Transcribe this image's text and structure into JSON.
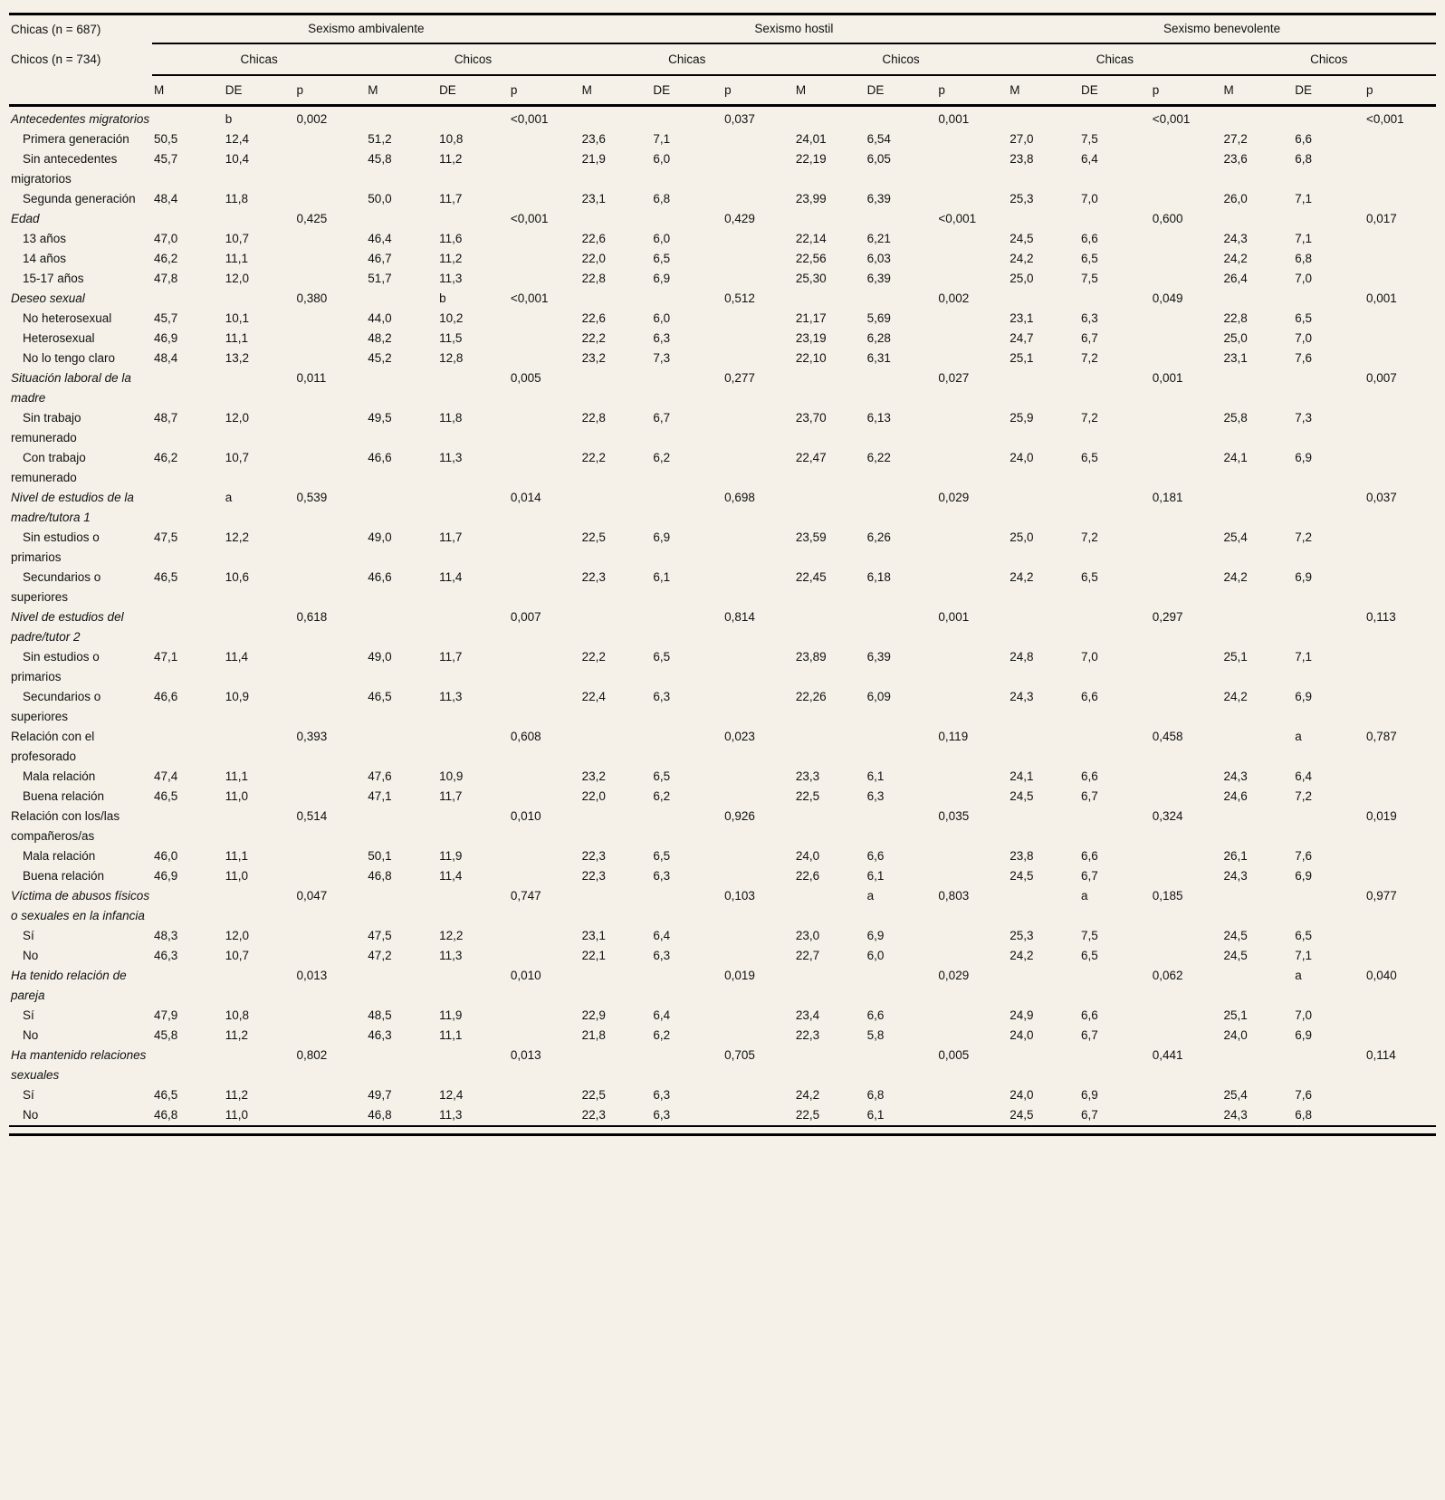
{
  "page": {
    "background": "#f5f1e8",
    "rule_color": "#000000"
  },
  "table": {
    "stub_header": [
      "Chicas (n = 687)",
      "Chicos (n = 734)"
    ],
    "groups": [
      "Sexismo ambivalente",
      "Sexismo hostil",
      "Sexismo benevolente"
    ],
    "subgroups": [
      "Chicas",
      "Chicos"
    ],
    "measures": [
      "M",
      "DE",
      "p"
    ],
    "rows": [
      {
        "label": "Antecedentes migratorios",
        "type": "cat",
        "italic": true,
        "cells": [
          "",
          "b",
          "0,002",
          "",
          "",
          "<0,001",
          "",
          "",
          "0,037",
          "",
          "",
          "0,001",
          "",
          "",
          "<0,001",
          "",
          "",
          "<0,001"
        ]
      },
      {
        "label": "Primera generación",
        "type": "sub",
        "italic": false,
        "cells": [
          "50,5",
          "12,4",
          "",
          "51,2",
          "10,8",
          "",
          "23,6",
          "7,1",
          "",
          "24,01",
          "6,54",
          "",
          "27,0",
          "7,5",
          "",
          "27,2",
          "6,6",
          ""
        ]
      },
      {
        "label": "Sin antecedentes migratorios",
        "type": "sub",
        "italic": false,
        "cells": [
          "45,7",
          "10,4",
          "",
          "45,8",
          "11,2",
          "",
          "21,9",
          "6,0",
          "",
          "22,19",
          "6,05",
          "",
          "23,8",
          "6,4",
          "",
          "23,6",
          "6,8",
          ""
        ]
      },
      {
        "label": "Segunda generación",
        "type": "sub",
        "italic": false,
        "cells": [
          "48,4",
          "11,8",
          "",
          "50,0",
          "11,7",
          "",
          "23,1",
          "6,8",
          "",
          "23,99",
          "6,39",
          "",
          "25,3",
          "7,0",
          "",
          "26,0",
          "7,1",
          ""
        ]
      },
      {
        "label": "Edad",
        "type": "cat",
        "italic": true,
        "cells": [
          "",
          "",
          "0,425",
          "",
          "",
          "<0,001",
          "",
          "",
          "0,429",
          "",
          "",
          "<0,001",
          "",
          "",
          "0,600",
          "",
          "",
          "0,017"
        ]
      },
      {
        "label": "13 años",
        "type": "sub",
        "italic": false,
        "cells": [
          "47,0",
          "10,7",
          "",
          "46,4",
          "11,6",
          "",
          "22,6",
          "6,0",
          "",
          "22,14",
          "6,21",
          "",
          "24,5",
          "6,6",
          "",
          "24,3",
          "7,1",
          ""
        ]
      },
      {
        "label": "14 años",
        "type": "sub",
        "italic": false,
        "cells": [
          "46,2",
          "11,1",
          "",
          "46,7",
          "11,2",
          "",
          "22,0",
          "6,5",
          "",
          "22,56",
          "6,03",
          "",
          "24,2",
          "6,5",
          "",
          "24,2",
          "6,8",
          ""
        ]
      },
      {
        "label": "15-17 años",
        "type": "sub",
        "italic": false,
        "cells": [
          "47,8",
          "12,0",
          "",
          "51,7",
          "11,3",
          "",
          "22,8",
          "6,9",
          "",
          "25,30",
          "6,39",
          "",
          "25,0",
          "7,5",
          "",
          "26,4",
          "7,0",
          ""
        ]
      },
      {
        "label": "Deseo sexual",
        "type": "cat",
        "italic": true,
        "cells": [
          "",
          "",
          "0,380",
          "",
          "b",
          "<0,001",
          "",
          "",
          "0,512",
          "",
          "",
          "0,002",
          "",
          "",
          "0,049",
          "",
          "",
          "0,001"
        ]
      },
      {
        "label": "No heterosexual",
        "type": "sub",
        "italic": false,
        "cells": [
          "45,7",
          "10,1",
          "",
          "44,0",
          "10,2",
          "",
          "22,6",
          "6,0",
          "",
          "21,17",
          "5,69",
          "",
          "23,1",
          "6,3",
          "",
          "22,8",
          "6,5",
          ""
        ]
      },
      {
        "label": "Heterosexual",
        "type": "sub",
        "italic": false,
        "cells": [
          "46,9",
          "11,1",
          "",
          "48,2",
          "11,5",
          "",
          "22,2",
          "6,3",
          "",
          "23,19",
          "6,28",
          "",
          "24,7",
          "6,7",
          "",
          "25,0",
          "7,0",
          ""
        ]
      },
      {
        "label": "No lo tengo claro",
        "type": "sub",
        "italic": false,
        "cells": [
          "48,4",
          "13,2",
          "",
          "45,2",
          "12,8",
          "",
          "23,2",
          "7,3",
          "",
          "22,10",
          "6,31",
          "",
          "25,1",
          "7,2",
          "",
          "23,1",
          "7,6",
          ""
        ]
      },
      {
        "label": "Situación laboral de la madre",
        "type": "cat",
        "italic": true,
        "cells": [
          "",
          "",
          "0,011",
          "",
          "",
          "0,005",
          "",
          "",
          "0,277",
          "",
          "",
          "0,027",
          "",
          "",
          "0,001",
          "",
          "",
          "0,007"
        ]
      },
      {
        "label": "Sin trabajo remunerado",
        "type": "sub",
        "italic": false,
        "cells": [
          "48,7",
          "12,0",
          "",
          "49,5",
          "11,8",
          "",
          "22,8",
          "6,7",
          "",
          "23,70",
          "6,13",
          "",
          "25,9",
          "7,2",
          "",
          "25,8",
          "7,3",
          ""
        ]
      },
      {
        "label": "Con trabajo remunerado",
        "type": "sub",
        "italic": false,
        "cells": [
          "46,2",
          "10,7",
          "",
          "46,6",
          "11,3",
          "",
          "22,2",
          "6,2",
          "",
          "22,47",
          "6,22",
          "",
          "24,0",
          "6,5",
          "",
          "24,1",
          "6,9",
          ""
        ]
      },
      {
        "label": "Nivel de estudios de la madre/tutora 1",
        "type": "cat",
        "italic": true,
        "cells": [
          "",
          "a",
          "0,539",
          "",
          "",
          "0,014",
          "",
          "",
          "0,698",
          "",
          "",
          "0,029",
          "",
          "",
          "0,181",
          "",
          "",
          "0,037"
        ]
      },
      {
        "label": "Sin estudios o primarios",
        "type": "sub",
        "italic": false,
        "cells": [
          "47,5",
          "12,2",
          "",
          "49,0",
          "11,7",
          "",
          "22,5",
          "6,9",
          "",
          "23,59",
          "6,26",
          "",
          "25,0",
          "7,2",
          "",
          "25,4",
          "7,2",
          ""
        ]
      },
      {
        "label": "Secundarios o superiores",
        "type": "sub",
        "italic": false,
        "cells": [
          "46,5",
          "10,6",
          "",
          "46,6",
          "11,4",
          "",
          "22,3",
          "6,1",
          "",
          "22,45",
          "6,18",
          "",
          "24,2",
          "6,5",
          "",
          "24,2",
          "6,9",
          ""
        ]
      },
      {
        "label": "Nivel de estudios del padre/tutor 2",
        "type": "cat",
        "italic": true,
        "cells": [
          "",
          "",
          "0,618",
          "",
          "",
          "0,007",
          "",
          "",
          "0,814",
          "",
          "",
          "0,001",
          "",
          "",
          "0,297",
          "",
          "",
          "0,113"
        ]
      },
      {
        "label": "Sin estudios o primarios",
        "type": "sub",
        "italic": false,
        "cells": [
          "47,1",
          "11,4",
          "",
          "49,0",
          "11,7",
          "",
          "22,2",
          "6,5",
          "",
          "23,89",
          "6,39",
          "",
          "24,8",
          "7,0",
          "",
          "25,1",
          "7,1",
          ""
        ]
      },
      {
        "label": "Secundarios o superiores",
        "type": "sub",
        "italic": false,
        "cells": [
          "46,6",
          "10,9",
          "",
          "46,5",
          "11,3",
          "",
          "22,4",
          "6,3",
          "",
          "22,26",
          "6,09",
          "",
          "24,3",
          "6,6",
          "",
          "24,2",
          "6,9",
          ""
        ]
      },
      {
        "label": "Relación con el profesorado",
        "type": "cat",
        "italic": false,
        "cells": [
          "",
          "",
          "0,393",
          "",
          "",
          "0,608",
          "",
          "",
          "0,023",
          "",
          "",
          "0,119",
          "",
          "",
          "0,458",
          "",
          "a",
          "0,787"
        ]
      },
      {
        "label": "Mala relación",
        "type": "sub",
        "italic": false,
        "cells": [
          "47,4",
          "11,1",
          "",
          "47,6",
          "10,9",
          "",
          "23,2",
          "6,5",
          "",
          "23,3",
          "6,1",
          "",
          "24,1",
          "6,6",
          "",
          "24,3",
          "6,4",
          ""
        ]
      },
      {
        "label": "Buena relación",
        "type": "sub",
        "italic": false,
        "cells": [
          "46,5",
          "11,0",
          "",
          "47,1",
          "11,7",
          "",
          "22,0",
          "6,2",
          "",
          "22,5",
          "6,3",
          "",
          "24,5",
          "6,7",
          "",
          "24,6",
          "7,2",
          ""
        ]
      },
      {
        "label": "Relación con los/las compañeros/as",
        "type": "cat",
        "italic": false,
        "cells": [
          "",
          "",
          "0,514",
          "",
          "",
          "0,010",
          "",
          "",
          "0,926",
          "",
          "",
          "0,035",
          "",
          "",
          "0,324",
          "",
          "",
          "0,019"
        ]
      },
      {
        "label": "Mala relación",
        "type": "sub",
        "italic": false,
        "cells": [
          "46,0",
          "11,1",
          "",
          "50,1",
          "11,9",
          "",
          "22,3",
          "6,5",
          "",
          "24,0",
          "6,6",
          "",
          "23,8",
          "6,6",
          "",
          "26,1",
          "7,6",
          ""
        ]
      },
      {
        "label": "Buena relación",
        "type": "sub",
        "italic": false,
        "cells": [
          "46,9",
          "11,0",
          "",
          "46,8",
          "11,4",
          "",
          "22,3",
          "6,3",
          "",
          "22,6",
          "6,1",
          "",
          "24,5",
          "6,7",
          "",
          "24,3",
          "6,9",
          ""
        ]
      },
      {
        "label": "Víctima de abusos físicos o sexuales en la infancia",
        "type": "cat",
        "italic": true,
        "cells": [
          "",
          "",
          "0,047",
          "",
          "",
          "0,747",
          "",
          "",
          "0,103",
          "",
          "a",
          "0,803",
          "",
          "a",
          "0,185",
          "",
          "",
          "0,977"
        ]
      },
      {
        "label": "Sí",
        "type": "sub",
        "italic": false,
        "cells": [
          "48,3",
          "12,0",
          "",
          "47,5",
          "12,2",
          "",
          "23,1",
          "6,4",
          "",
          "23,0",
          "6,9",
          "",
          "25,3",
          "7,5",
          "",
          "24,5",
          "6,5",
          ""
        ]
      },
      {
        "label": "No",
        "type": "sub",
        "italic": false,
        "cells": [
          "46,3",
          "10,7",
          "",
          "47,2",
          "11,3",
          "",
          "22,1",
          "6,3",
          "",
          "22,7",
          "6,0",
          "",
          "24,2",
          "6,5",
          "",
          "24,5",
          "7,1",
          ""
        ]
      },
      {
        "label": "Ha tenido relación de pareja",
        "type": "cat",
        "italic": true,
        "cells": [
          "",
          "",
          "0,013",
          "",
          "",
          "0,010",
          "",
          "",
          "0,019",
          "",
          "",
          "0,029",
          "",
          "",
          "0,062",
          "",
          "a",
          "0,040"
        ]
      },
      {
        "label": "Sí",
        "type": "sub",
        "italic": false,
        "cells": [
          "47,9",
          "10,8",
          "",
          "48,5",
          "11,9",
          "",
          "22,9",
          "6,4",
          "",
          "23,4",
          "6,6",
          "",
          "24,9",
          "6,6",
          "",
          "25,1",
          "7,0",
          ""
        ]
      },
      {
        "label": "No",
        "type": "sub",
        "italic": false,
        "cells": [
          "45,8",
          "11,2",
          "",
          "46,3",
          "11,1",
          "",
          "21,8",
          "6,2",
          "",
          "22,3",
          "5,8",
          "",
          "24,0",
          "6,7",
          "",
          "24,0",
          "6,9",
          ""
        ]
      },
      {
        "label": "Ha mantenido relaciones sexuales",
        "type": "cat",
        "italic": true,
        "cells": [
          "",
          "",
          "0,802",
          "",
          "",
          "0,013",
          "",
          "",
          "0,705",
          "",
          "",
          "0,005",
          "",
          "",
          "0,441",
          "",
          "",
          "0,114"
        ]
      },
      {
        "label": "Sí",
        "type": "sub",
        "italic": false,
        "cells": [
          "46,5",
          "11,2",
          "",
          "49,7",
          "12,4",
          "",
          "22,5",
          "6,3",
          "",
          "24,2",
          "6,8",
          "",
          "24,0",
          "6,9",
          "",
          "25,4",
          "7,6",
          ""
        ]
      },
      {
        "label": "No",
        "type": "sub",
        "italic": false,
        "cells": [
          "46,8",
          "11,0",
          "",
          "46,8",
          "11,3",
          "",
          "22,3",
          "6,3",
          "",
          "22,5",
          "6,1",
          "",
          "24,5",
          "6,7",
          "",
          "24,3",
          "6,8",
          ""
        ]
      }
    ]
  }
}
